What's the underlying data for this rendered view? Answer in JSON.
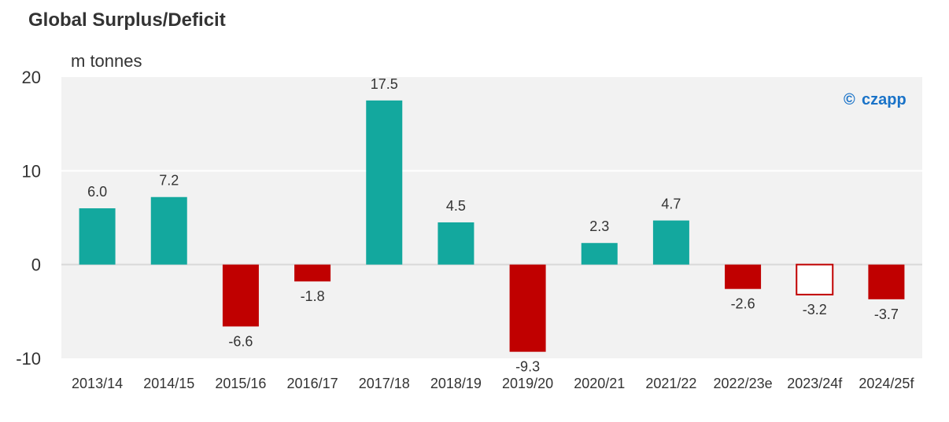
{
  "chart_data": {
    "type": "bar",
    "title": "Global Surplus/Deficit",
    "ylabel": "m tonnes",
    "xlabel": "",
    "ylim": [
      -10,
      20
    ],
    "yticks": [
      20,
      10,
      0,
      -10
    ],
    "grid": true,
    "categories": [
      "2013/14",
      "2014/15",
      "2015/16",
      "2016/17",
      "2017/18",
      "2018/19",
      "2019/20",
      "2020/21",
      "2021/22",
      "2022/23e",
      "2023/24f",
      "2024/25f"
    ],
    "values": [
      6.0,
      7.2,
      -6.6,
      -1.8,
      17.5,
      4.5,
      -9.3,
      2.3,
      4.7,
      -2.6,
      -3.2,
      -3.7
    ],
    "labels": [
      "6.0",
      "7.2",
      "-6.6",
      "-1.8",
      "17.5",
      "4.5",
      "-9.3",
      "2.3",
      "4.7",
      "-2.6",
      "-3.2",
      "-3.7"
    ],
    "bar_styles": [
      "surplus",
      "surplus",
      "deficit",
      "deficit",
      "surplus",
      "surplus",
      "deficit",
      "surplus",
      "surplus",
      "deficit",
      "deficit-outline",
      "deficit"
    ],
    "colors": {
      "surplus": "#13a89e",
      "deficit": "#c00000",
      "plot_bg": "#f2f2f2",
      "gridline": "#ffffff",
      "logo": "#1a73c8"
    }
  },
  "watermark": {
    "symbol": "©",
    "text": "czapp"
  }
}
